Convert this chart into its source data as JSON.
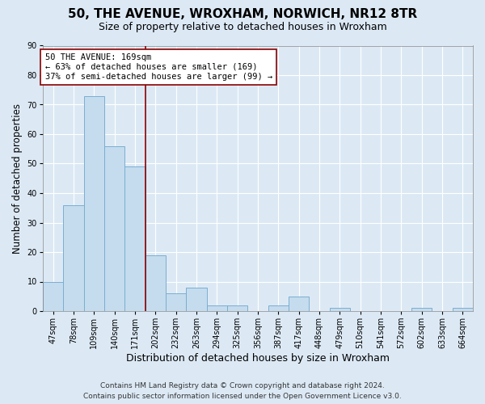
{
  "title": "50, THE AVENUE, WROXHAM, NORWICH, NR12 8TR",
  "subtitle": "Size of property relative to detached houses in Wroxham",
  "xlabel": "Distribution of detached houses by size in Wroxham",
  "ylabel": "Number of detached properties",
  "footnote1": "Contains HM Land Registry data © Crown copyright and database right 2024.",
  "footnote2": "Contains public sector information licensed under the Open Government Licence v3.0.",
  "bin_labels": [
    "47sqm",
    "78sqm",
    "109sqm",
    "140sqm",
    "171sqm",
    "202sqm",
    "232sqm",
    "263sqm",
    "294sqm",
    "325sqm",
    "356sqm",
    "387sqm",
    "417sqm",
    "448sqm",
    "479sqm",
    "510sqm",
    "541sqm",
    "572sqm",
    "602sqm",
    "633sqm",
    "664sqm"
  ],
  "bin_values": [
    10,
    36,
    73,
    56,
    49,
    19,
    6,
    8,
    2,
    2,
    0,
    2,
    5,
    0,
    1,
    0,
    0,
    0,
    1,
    0,
    1
  ],
  "bar_color": "#c5dcee",
  "bar_edge_color": "#7aaed0",
  "vline_x": 4.5,
  "vline_color": "#8b0000",
  "annotation_line1": "50 THE AVENUE: 169sqm",
  "annotation_line2": "← 63% of detached houses are smaller (169)",
  "annotation_line3": "37% of semi-detached houses are larger (99) →",
  "annotation_box_color": "#ffffff",
  "annotation_box_edge_color": "#8b0000",
  "ylim": [
    0,
    90
  ],
  "yticks": [
    0,
    10,
    20,
    30,
    40,
    50,
    60,
    70,
    80,
    90
  ],
  "background_color": "#dce9f5",
  "plot_bg_color": "#dce9f5",
  "grid_color": "#ffffff",
  "title_fontsize": 11,
  "subtitle_fontsize": 9,
  "xlabel_fontsize": 9,
  "ylabel_fontsize": 8.5,
  "tick_fontsize": 7,
  "annotation_fontsize": 7.5,
  "footnote_fontsize": 6.5
}
